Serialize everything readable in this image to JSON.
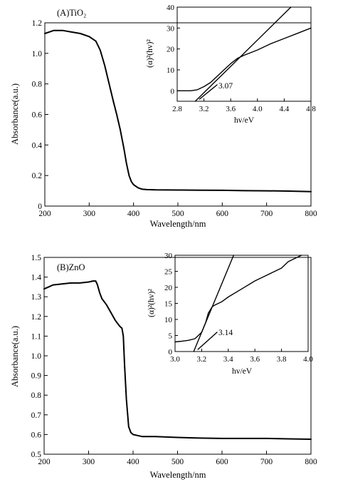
{
  "chart_data": [
    {
      "type": "line",
      "panel_label": "(A)TiO₂",
      "xlabel": "Wavelength/nm",
      "ylabel": "Absorbance(a.u.)",
      "xlim": [
        200,
        800
      ],
      "ylim": [
        0,
        1.2
      ],
      "xticks": [
        200,
        300,
        400,
        500,
        600,
        700,
        800
      ],
      "yticks": [
        0,
        0.2,
        0.4,
        0.6,
        0.8,
        1.0,
        1.2
      ],
      "ytick_labels": [
        "0",
        "0.2",
        "0.4",
        "0.6",
        "0.8",
        "1.0",
        "1.2"
      ],
      "series": [
        {
          "x": [
            200,
            210,
            220,
            240,
            260,
            280,
            300,
            315,
            325,
            335,
            345,
            355,
            362,
            370,
            378,
            384,
            390,
            395,
            400,
            405,
            410,
            415,
            420,
            430,
            450,
            500,
            550,
            600,
            650,
            700,
            750,
            800
          ],
          "y": [
            1.13,
            1.14,
            1.15,
            1.15,
            1.14,
            1.13,
            1.11,
            1.08,
            1.02,
            0.92,
            0.8,
            0.68,
            0.6,
            0.5,
            0.38,
            0.28,
            0.2,
            0.16,
            0.14,
            0.13,
            0.12,
            0.115,
            0.11,
            0.108,
            0.106,
            0.105,
            0.104,
            0.103,
            0.101,
            0.1,
            0.098,
            0.095
          ]
        }
      ],
      "inset": {
        "type": "line",
        "xlabel": "hv/eV",
        "ylabel": "(α)²(hv)²",
        "xlim": [
          2.8,
          4.8
        ],
        "ylim": [
          -5,
          40
        ],
        "xticks": [
          2.8,
          3.2,
          3.6,
          4.0,
          4.4,
          4.8
        ],
        "xtick_labels": [
          "2.8",
          "3.2",
          "3.6",
          "4.0",
          "4.4",
          "4.8"
        ],
        "yticks": [
          0,
          10,
          20,
          30,
          40
        ],
        "annotation": "3.07",
        "series": [
          {
            "x": [
              2.8,
              2.9,
              3.0,
              3.1,
              3.2,
              3.3,
              3.4,
              3.5,
              3.6,
              3.7,
              3.8,
              4.0,
              4.2,
              4.4,
              4.6,
              4.8
            ],
            "y": [
              0,
              0,
              0,
              0.5,
              2,
              4,
              7,
              10,
              13,
              15.5,
              17,
              19.5,
              22.5,
              25,
              27.5,
              30
            ]
          },
          {
            "x": [
              3.07,
              4.5
            ],
            "y": [
              -5,
              40
            ]
          }
        ]
      }
    },
    {
      "type": "line",
      "panel_label": "(B)ZnO",
      "xlabel": "Wavelength/nm",
      "ylabel": "Absorbance(a.u.)",
      "xlim": [
        200,
        800
      ],
      "ylim": [
        0.5,
        1.5
      ],
      "xticks": [
        200,
        300,
        400,
        500,
        600,
        700,
        800
      ],
      "yticks": [
        0.5,
        0.6,
        0.7,
        0.8,
        0.9,
        1.0,
        1.1,
        1.2,
        1.3,
        1.4,
        1.5
      ],
      "ytick_labels": [
        "0.5",
        "0.6",
        "0.7",
        "0.8",
        "0.9",
        "1.0",
        "1.1",
        "1.2",
        "1.3",
        "1.4",
        "1.5"
      ],
      "series": [
        {
          "x": [
            200,
            210,
            220,
            240,
            260,
            280,
            300,
            310,
            316,
            320,
            325,
            330,
            340,
            350,
            360,
            370,
            375,
            378,
            381,
            385,
            390,
            395,
            400,
            410,
            420,
            450,
            500,
            550,
            600,
            650,
            700,
            750,
            800
          ],
          "y": [
            1.34,
            1.35,
            1.36,
            1.365,
            1.37,
            1.37,
            1.375,
            1.38,
            1.38,
            1.36,
            1.32,
            1.29,
            1.26,
            1.22,
            1.18,
            1.15,
            1.14,
            1.1,
            0.95,
            0.78,
            0.64,
            0.61,
            0.6,
            0.595,
            0.59,
            0.59,
            0.585,
            0.582,
            0.58,
            0.58,
            0.58,
            0.578,
            0.576
          ]
        }
      ],
      "inset": {
        "type": "line",
        "xlabel": "hv/eV",
        "ylabel": "(α)²(hv)²",
        "xlim": [
          3.0,
          4.0
        ],
        "ylim": [
          0,
          30
        ],
        "xticks": [
          3.0,
          3.2,
          3.4,
          3.6,
          3.8,
          4.0
        ],
        "xtick_labels": [
          "3.0",
          "3.2",
          "3.4",
          "3.6",
          "3.8",
          "4.0"
        ],
        "yticks": [
          0,
          5,
          10,
          15,
          20,
          25,
          30
        ],
        "annotation": "3.14",
        "series": [
          {
            "x": [
              3.0,
              3.05,
              3.1,
              3.15,
              3.2,
              3.23,
              3.25,
              3.28,
              3.3,
              3.35,
              3.4,
              3.5,
              3.6,
              3.7,
              3.8,
              3.85,
              3.9,
              3.95
            ],
            "y": [
              3,
              3.2,
              3.5,
              4,
              6,
              9,
              12,
              14,
              14.5,
              15.5,
              17,
              19.5,
              22,
              24,
              26,
              28,
              29,
              30
            ]
          },
          {
            "x": [
              3.14,
              3.44
            ],
            "y": [
              0,
              30
            ]
          }
        ]
      }
    }
  ]
}
